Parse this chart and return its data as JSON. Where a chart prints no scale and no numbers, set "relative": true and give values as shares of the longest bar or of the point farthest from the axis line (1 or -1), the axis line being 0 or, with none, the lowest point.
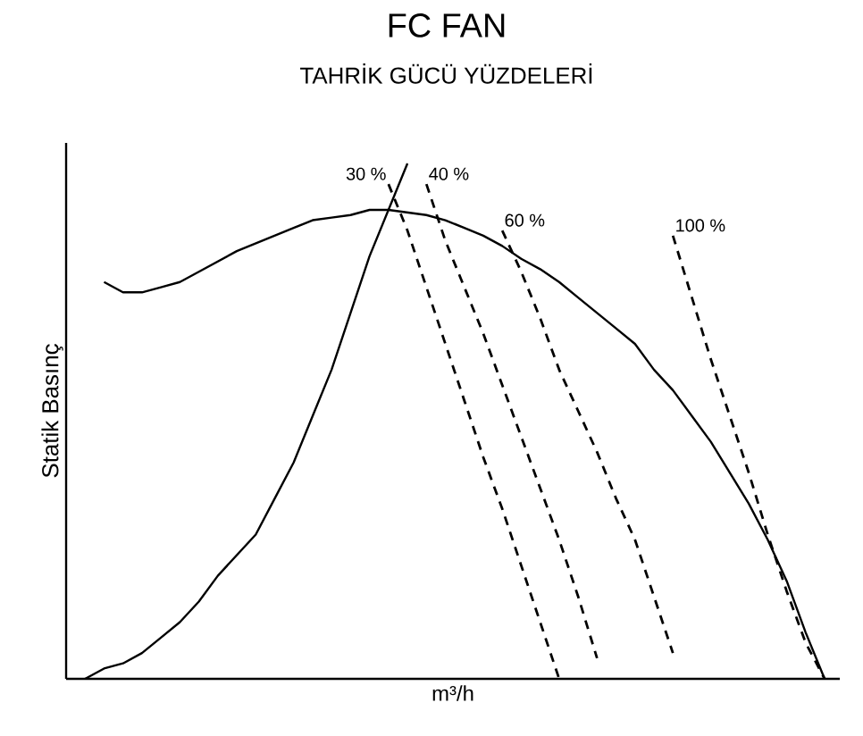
{
  "chart_data": {
    "type": "line",
    "title": "FC FAN",
    "subtitle": "TAHRİK GÜCÜ YÜZDELERİ",
    "xlabel": "m³/h",
    "ylabel": "Statik Basınç",
    "relative": true,
    "marker": "none",
    "categories": [
      null,
      null,
      null,
      null,
      null,
      null,
      null,
      null,
      null,
      null,
      null,
      null,
      null,
      null,
      null,
      null,
      null,
      null,
      null,
      null,
      null,
      null,
      null,
      null,
      null,
      null,
      null,
      null,
      null,
      null,
      null,
      null,
      null,
      null,
      null,
      null,
      null,
      null,
      null,
      null,
      null
    ],
    "series": [
      {
        "color": "#000000",
        "line_style": "solid",
        "values": [
          null,
          null,
          0.77,
          0.75,
          0.75,
          0.76,
          0.77,
          0.79,
          0.81,
          0.83,
          0.845,
          0.86,
          0.875,
          0.89,
          0.895,
          0.9,
          0.91,
          0.91,
          0.905,
          0.9,
          0.89,
          0.875,
          0.86,
          0.84,
          0.815,
          0.795,
          0.77,
          0.74,
          0.71,
          0.68,
          0.65,
          0.6,
          0.56,
          0.51,
          0.46,
          0.4,
          0.34,
          0.27,
          0.19,
          0.09,
          0
        ]
      },
      {
        "color": "#000000",
        "line_style": "solid",
        "values": [
          null,
          0,
          0.02,
          0.03,
          0.05,
          0.08,
          0.11,
          0.15,
          0.2,
          0.24,
          0.28,
          0.35,
          0.42,
          0.51,
          0.6,
          0.71,
          0.82,
          0.91,
          1.0,
          null,
          null,
          null,
          null,
          null,
          null,
          null,
          null,
          null,
          null,
          null,
          null,
          null,
          null,
          null,
          null,
          null,
          null,
          null,
          null,
          null,
          null
        ]
      },
      {
        "name": "30 %",
        "color": "#000000",
        "line_style": "dashed",
        "values": [
          null,
          null,
          null,
          null,
          null,
          null,
          null,
          null,
          null,
          null,
          null,
          null,
          null,
          null,
          null,
          null,
          null,
          0.96,
          0.87,
          0.76,
          0.65,
          0.54,
          0.43,
          0.33,
          0.22,
          0.11,
          0,
          null,
          null,
          null,
          null,
          null,
          null,
          null,
          null,
          null,
          null,
          null,
          null,
          null,
          null
        ]
      },
      {
        "name": "40 %",
        "color": "#000000",
        "line_style": "dashed",
        "values": [
          null,
          null,
          null,
          null,
          null,
          null,
          null,
          null,
          null,
          null,
          null,
          null,
          null,
          null,
          null,
          null,
          null,
          null,
          null,
          0.96,
          0.85,
          0.76,
          0.67,
          0.57,
          0.47,
          0.37,
          0.27,
          0.16,
          0.04,
          null,
          null,
          null,
          null,
          null,
          null,
          null,
          null,
          null,
          null,
          null,
          null
        ]
      },
      {
        "name": "60 %",
        "color": "#000000",
        "line_style": "dashed",
        "values": [
          null,
          null,
          null,
          null,
          null,
          null,
          null,
          null,
          null,
          null,
          null,
          null,
          null,
          null,
          null,
          null,
          null,
          null,
          null,
          null,
          null,
          null,
          null,
          0.87,
          0.79,
          0.7,
          0.6,
          0.52,
          0.44,
          0.35,
          0.27,
          0.16,
          0.05,
          null,
          null,
          null,
          null,
          null,
          null,
          null,
          null
        ]
      },
      {
        "name": "100 %",
        "color": "#000000",
        "line_style": "dashed",
        "values": [
          null,
          null,
          null,
          null,
          null,
          null,
          null,
          null,
          null,
          null,
          null,
          null,
          null,
          null,
          null,
          null,
          null,
          null,
          null,
          null,
          null,
          null,
          null,
          null,
          null,
          null,
          null,
          null,
          null,
          null,
          null,
          null,
          0.86,
          0.74,
          0.62,
          0.51,
          0.4,
          0.28,
          0.17,
          0.07,
          0
        ]
      }
    ]
  }
}
